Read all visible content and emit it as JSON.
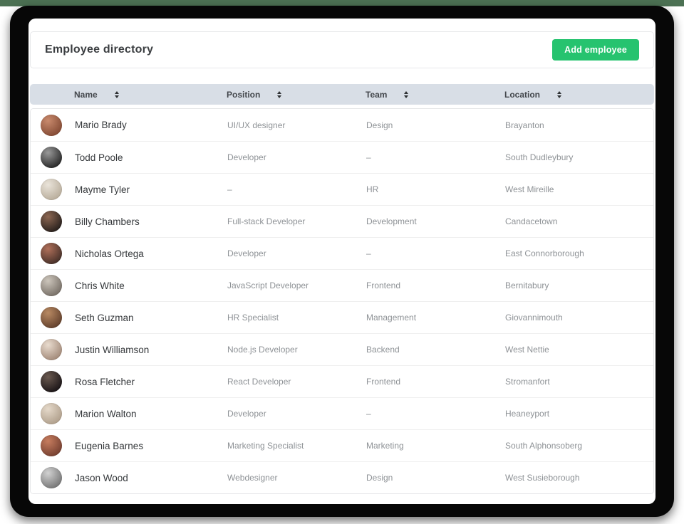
{
  "page": {
    "title": "Employee directory",
    "add_button_label": "Add employee"
  },
  "colors": {
    "accent_green": "#26c36f",
    "table_header_bg": "#d8dee6",
    "backdrop": "#070707",
    "top_strip_green": "#4c7153",
    "name_text": "#35383b",
    "secondary_text": "#8e9296"
  },
  "icons": {
    "sort": "up-down-sort-arrows"
  },
  "table": {
    "columns": [
      {
        "label": "Name"
      },
      {
        "label": "Position"
      },
      {
        "label": "Team"
      },
      {
        "label": "Location"
      }
    ],
    "rows": [
      {
        "name": "Mario Brady",
        "position": "UI/UX designer",
        "team": "Design",
        "location": "Brayanton",
        "avatar_colors": [
          "#c98a6d",
          "#7e452f"
        ]
      },
      {
        "name": "Todd Poole",
        "position": "Developer",
        "team": "–",
        "location": "South Dudleybury",
        "avatar_colors": [
          "#9a9a9a",
          "#1d1d1d"
        ]
      },
      {
        "name": "Mayme Tyler",
        "position": "–",
        "team": "HR",
        "location": "West Mireille",
        "avatar_colors": [
          "#eae4da",
          "#b4a896"
        ]
      },
      {
        "name": "Billy Chambers",
        "position": "Full-stack Developer",
        "team": "Development",
        "location": "Candacetown",
        "avatar_colors": [
          "#8d6752",
          "#1f1a18"
        ]
      },
      {
        "name": "Nicholas Ortega",
        "position": "Developer",
        "team": "–",
        "location": "East Connorborough",
        "avatar_colors": [
          "#b0705a",
          "#3c2a24"
        ]
      },
      {
        "name": "Chris White",
        "position": "JavaScript Developer",
        "team": "Frontend",
        "location": "Bernitabury",
        "avatar_colors": [
          "#cdc6bc",
          "#6f675f"
        ]
      },
      {
        "name": "Seth Guzman",
        "position": "HR Specialist",
        "team": "Management",
        "location": "Giovannimouth",
        "avatar_colors": [
          "#b98a63",
          "#5b3a28"
        ]
      },
      {
        "name": "Justin Williamson",
        "position": "Node.js Developer",
        "team": "Backend",
        "location": "West Nettie",
        "avatar_colors": [
          "#e9dccf",
          "#9c8271"
        ]
      },
      {
        "name": "Rosa Fletcher",
        "position": "React Developer",
        "team": "Frontend",
        "location": "Stromanfort",
        "avatar_colors": [
          "#6b5a50",
          "#140f12"
        ]
      },
      {
        "name": "Marion Walton",
        "position": "Developer",
        "team": "–",
        "location": "Heaneyport",
        "avatar_colors": [
          "#e5d9ca",
          "#ab9a86"
        ]
      },
      {
        "name": "Eugenia Barnes",
        "position": "Marketing Specialist",
        "team": "Marketing",
        "location": "South Alphonsoberg",
        "avatar_colors": [
          "#c77d5f",
          "#6e3a2c"
        ]
      },
      {
        "name": "Jason Wood",
        "position": "Webdesigner",
        "team": "Design",
        "location": "West Susieborough",
        "avatar_colors": [
          "#d2d2d2",
          "#6e6e6e"
        ]
      }
    ]
  }
}
